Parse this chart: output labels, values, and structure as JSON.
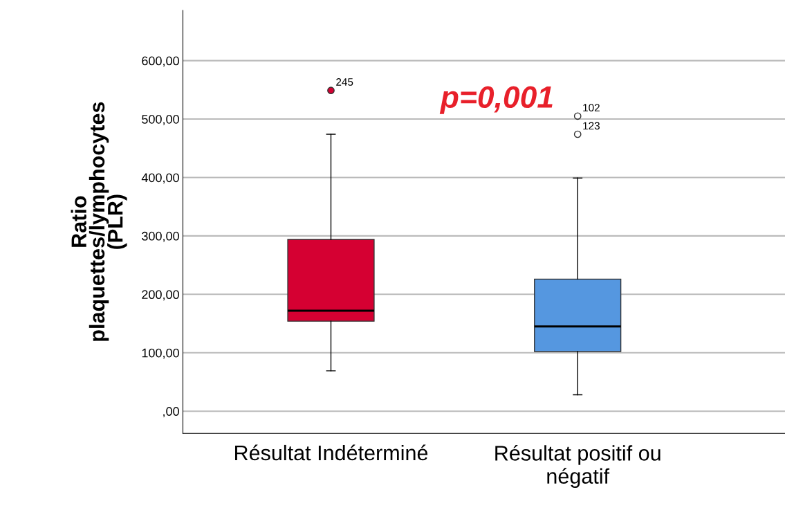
{
  "chart_data": {
    "type": "box",
    "ylabel": "Ratio\nplaquettes/lymphocytes\n(PLR)",
    "categories": [
      "Résultat Indéterminé",
      "Résultat positif ou\nnégatif"
    ],
    "colors": [
      "#d50032",
      "#5597e0"
    ],
    "boxes": [
      {
        "low": 69,
        "q1": 154,
        "median": 172,
        "q3": 294,
        "high": 474,
        "outliers": [
          549
        ]
      },
      {
        "low": 28,
        "q1": 102,
        "median": 145,
        "q3": 226,
        "high": 399,
        "outliers": [
          505,
          474
        ]
      }
    ],
    "ylim": [
      -38,
      686
    ],
    "yticks": [
      {
        "value": 0,
        "label": ",00"
      },
      {
        "value": 100,
        "label": "100,00"
      },
      {
        "value": 200,
        "label": "200,00"
      },
      {
        "value": 300,
        "label": "300,00"
      },
      {
        "value": 400,
        "label": "400,00"
      },
      {
        "value": 500,
        "label": "500,00"
      },
      {
        "value": 600,
        "label": "600,00"
      }
    ],
    "grid": "y",
    "annotations": [
      "p=0,001",
      "245",
      "102",
      "123"
    ]
  }
}
